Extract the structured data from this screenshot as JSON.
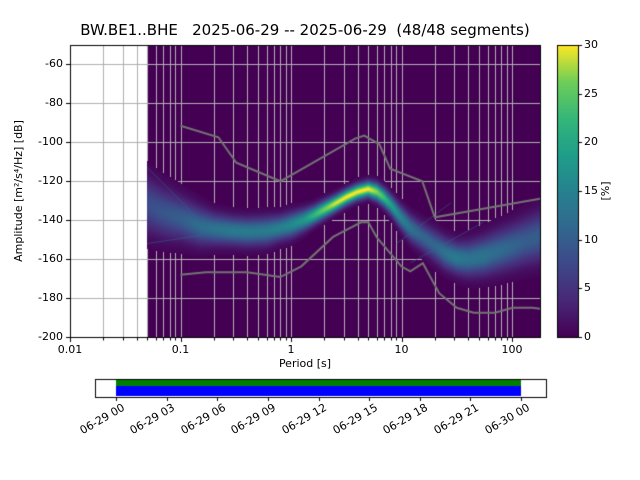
{
  "title": "BW.BE1..BHE   2025-06-29 -- 2025-06-29  (48/48 segments)",
  "chart_data": {
    "type": "heatmap",
    "subtype": "ppsd-probability-histogram",
    "title": "BW.BE1..BHE   2025-06-29 -- 2025-06-29  (48/48 segments)",
    "station": "BW.BE1..BHE",
    "date_range": "2025-06-29 -- 2025-06-29",
    "segments": "48/48",
    "xlabel": "Period [s]",
    "ylabel": "Amplitude [m²/s⁴/Hz] [dB]",
    "x_scale": "log",
    "xlim": [
      0.01,
      179
    ],
    "ylim": [
      -200,
      -50
    ],
    "x_tick_values": [
      0.01,
      0.1,
      1,
      10,
      100
    ],
    "x_tick_labels": [
      "0.01",
      "0.1",
      "1",
      "10",
      "100"
    ],
    "y_tick_values": [
      -60,
      -80,
      -100,
      -120,
      -140,
      -160,
      -180,
      -200
    ],
    "y_tick_labels": [
      "-60",
      "-80",
      "-100",
      "-120",
      "-140",
      "-160",
      "-180",
      "-200"
    ],
    "grid": true,
    "grid_color": "#b0b0b0",
    "zero_prob_color": "#440154",
    "no_data_color": "#ffffff",
    "colormap": "viridis",
    "colormap_stops": [
      [
        0.0,
        "#440154"
      ],
      [
        0.125,
        "#482878"
      ],
      [
        0.25,
        "#3e4989"
      ],
      [
        0.375,
        "#31688e"
      ],
      [
        0.5,
        "#26828e"
      ],
      [
        0.625,
        "#1f9e89"
      ],
      [
        0.75,
        "#35b779"
      ],
      [
        0.875,
        "#6ece58"
      ],
      [
        1.0,
        "#fde725"
      ]
    ],
    "colorbar": {
      "label": "[%]",
      "min": 0,
      "max": 30,
      "ticks": [
        0,
        5,
        10,
        15,
        20,
        25,
        30
      ],
      "tick_labels": [
        "0",
        "5",
        "10",
        "15",
        "20",
        "25",
        "30"
      ],
      "position": "right"
    },
    "data_period_range": [
      0.05,
      179
    ],
    "psd_distribution": {
      "points": [
        [
          0.05,
          -132,
          8,
          9
        ],
        [
          0.07,
          -136,
          9,
          8
        ],
        [
          0.1,
          -139,
          10,
          7
        ],
        [
          0.15,
          -143,
          12,
          6
        ],
        [
          0.2,
          -144.5,
          13,
          5
        ],
        [
          0.3,
          -145.5,
          14,
          4.5
        ],
        [
          0.4,
          -146,
          14,
          4.5
        ],
        [
          0.6,
          -145.5,
          14,
          4.5
        ],
        [
          0.8,
          -144,
          15,
          4
        ],
        [
          1.0,
          -142.5,
          16,
          4
        ],
        [
          1.3,
          -140,
          18,
          3.5
        ],
        [
          1.6,
          -137.5,
          22,
          3
        ],
        [
          2.0,
          -134.5,
          26,
          2.8
        ],
        [
          2.5,
          -131.5,
          29,
          2.6
        ],
        [
          3.2,
          -128,
          30,
          2.5
        ],
        [
          4.0,
          -125.5,
          30,
          2.5
        ],
        [
          5.0,
          -124,
          30,
          2.5
        ],
        [
          6.0,
          -125.5,
          27,
          2.8
        ],
        [
          7.0,
          -128.5,
          23,
          3
        ],
        [
          8.0,
          -132,
          19,
          3.2
        ],
        [
          10.0,
          -139,
          15,
          3.8
        ],
        [
          12.0,
          -144,
          13,
          4.2
        ],
        [
          15.0,
          -148,
          11,
          4.5
        ],
        [
          20.0,
          -153,
          11,
          5
        ],
        [
          25.0,
          -157,
          13,
          5
        ],
        [
          32.0,
          -159.5,
          14,
          5
        ],
        [
          40.0,
          -160,
          13,
          5.5
        ],
        [
          55.0,
          -158.5,
          13,
          6
        ],
        [
          70.0,
          -156.5,
          12,
          6.5
        ],
        [
          100.0,
          -153.5,
          11,
          7
        ],
        [
          130.0,
          -151,
          10,
          7.5
        ],
        [
          179.0,
          -148.5,
          10,
          8
        ]
      ]
    },
    "noise_models": {
      "color": "#737373",
      "nhnm": [
        [
          0.1,
          -91.5
        ],
        [
          0.22,
          -97.4
        ],
        [
          0.32,
          -110.5
        ],
        [
          0.8,
          -120.0
        ],
        [
          3.8,
          -98.1
        ],
        [
          4.6,
          -96.5
        ],
        [
          6.3,
          -101.0
        ],
        [
          7.9,
          -113.5
        ],
        [
          15.4,
          -120.0
        ],
        [
          20.0,
          -138.5
        ],
        [
          179.0,
          -129.0
        ]
      ],
      "nlnm": [
        [
          0.1,
          -168.0
        ],
        [
          0.17,
          -166.7
        ],
        [
          0.4,
          -166.7
        ],
        [
          0.8,
          -169.2
        ],
        [
          1.24,
          -163.7
        ],
        [
          2.4,
          -148.6
        ],
        [
          4.3,
          -141.1
        ],
        [
          5.0,
          -141.1
        ],
        [
          6.0,
          -149.0
        ],
        [
          10.0,
          -163.8
        ],
        [
          12.0,
          -166.3
        ],
        [
          15.6,
          -162.1
        ],
        [
          21.9,
          -177.5
        ],
        [
          31.6,
          -185.0
        ],
        [
          45.0,
          -187.5
        ],
        [
          70.0,
          -187.5
        ],
        [
          101.0,
          -185.0
        ],
        [
          154.0,
          -185.0
        ],
        [
          179.0,
          -185.5
        ]
      ]
    },
    "faint_traces": {
      "color": "#31688e",
      "segments": [
        [
          [
            7.0,
            -126
          ],
          [
            30.0,
            -163
          ]
        ],
        [
          [
            9.0,
            -152
          ],
          [
            28.0,
            -131
          ]
        ],
        [
          [
            12.0,
            -162
          ],
          [
            55.0,
            -141
          ]
        ],
        [
          [
            0.05,
            -113
          ],
          [
            0.15,
            -140
          ]
        ],
        [
          [
            0.05,
            -152
          ],
          [
            0.25,
            -146
          ]
        ]
      ]
    },
    "timeline": {
      "labels": [
        "06-29 00",
        "06-29 03",
        "06-29 06",
        "06-29 09",
        "06-29 12",
        "06-29 15",
        "06-29 18",
        "06-29 21",
        "06-30 00"
      ],
      "hours_per_tick": 3,
      "hours_total": 24,
      "data_color": "#008000",
      "psd_color": "#0000ff",
      "coverage": [
        [
          0,
          24
        ]
      ]
    }
  }
}
